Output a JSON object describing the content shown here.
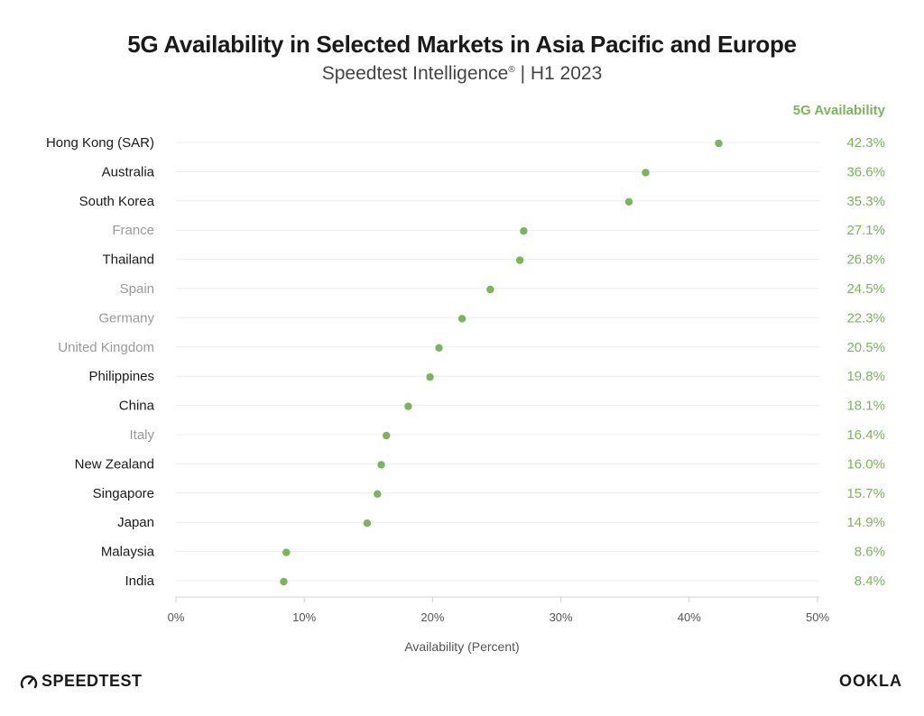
{
  "header": {
    "title": "5G Availability in Selected Markets in Asia Pacific and Europe",
    "subtitle_main": "Speedtest Intelligence",
    "subtitle_mark": "®",
    "subtitle_rest": " | H1 2023"
  },
  "colors": {
    "dot": "#7ab55c",
    "value_text": "#7ab55c",
    "label_apac": "#1a1a1a",
    "label_europe": "#9a9a9a",
    "grid": "#ececec",
    "axis": "#d0d0d0"
  },
  "chart_data": {
    "type": "scatter",
    "title": "5G Availability in Selected Markets in Asia Pacific and Europe",
    "subtitle": "Speedtest Intelligence® | H1 2023",
    "xlabel": "Availability (Percent)",
    "ylabel": "",
    "xlim": [
      0,
      50
    ],
    "x_ticks": [
      "0%",
      "10%",
      "20%",
      "30%",
      "40%",
      "50%"
    ],
    "series_name": "5G Availability",
    "categories": [
      "Hong Kong (SAR)",
      "Australia",
      "South Korea",
      "France",
      "Thailand",
      "Spain",
      "Germany",
      "United Kingdom",
      "Philippines",
      "China",
      "Italy",
      "New Zealand",
      "Singapore",
      "Japan",
      "Malaysia",
      "India"
    ],
    "values": [
      42.3,
      36.6,
      35.3,
      27.1,
      26.8,
      24.5,
      22.3,
      20.5,
      19.8,
      18.1,
      16.4,
      16.0,
      15.7,
      14.9,
      8.6,
      8.4
    ],
    "value_labels": [
      "42.3%",
      "36.6%",
      "35.3%",
      "27.1%",
      "26.8%",
      "24.5%",
      "22.3%",
      "20.5%",
      "19.8%",
      "18.1%",
      "16.4%",
      "16.0%",
      "15.7%",
      "14.9%",
      "8.6%",
      "8.4%"
    ],
    "region": [
      "apac",
      "apac",
      "apac",
      "europe",
      "apac",
      "europe",
      "europe",
      "europe",
      "apac",
      "apac",
      "europe",
      "apac",
      "apac",
      "apac",
      "apac",
      "apac"
    ],
    "grid": true
  },
  "footer": {
    "left_logo": "SPEEDTEST",
    "right_logo": "OOKLA"
  }
}
